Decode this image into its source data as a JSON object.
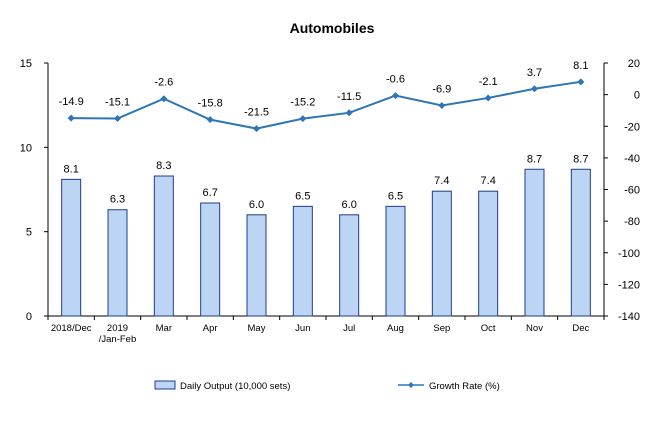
{
  "chart_data": {
    "type": "bar",
    "title": "Automobiles",
    "categories": [
      "2018/Dec",
      "2019 /Jan-Feb",
      "Mar",
      "Apr",
      "May",
      "Jun",
      "Jul",
      "Aug",
      "Sep",
      "Oct",
      "Nov",
      "Dec"
    ],
    "series": [
      {
        "name": "Daily Output (10,000 sets)",
        "type": "bar",
        "axis": "left",
        "values": [
          8.1,
          6.3,
          8.3,
          6.7,
          6.0,
          6.5,
          6.0,
          6.5,
          7.4,
          7.4,
          8.7,
          8.7
        ],
        "color": "#bcd5f5",
        "border": "#1f3c88"
      },
      {
        "name": "Growth Rate (%)",
        "type": "line",
        "axis": "right",
        "values": [
          -14.9,
          -15.1,
          -2.6,
          -15.8,
          -21.5,
          -15.2,
          -11.5,
          -0.6,
          -6.9,
          -2.1,
          3.7,
          8.1
        ],
        "color": "#2e75b6"
      }
    ],
    "y_left": {
      "min": 0,
      "max": 15,
      "ticks": [
        0,
        5,
        10,
        15
      ]
    },
    "y_right": {
      "min": -140,
      "max": 20,
      "ticks": [
        20,
        0,
        -20,
        -40,
        -60,
        -80,
        -100,
        -120,
        -140
      ]
    },
    "grid": false,
    "legend_position": "bottom"
  }
}
